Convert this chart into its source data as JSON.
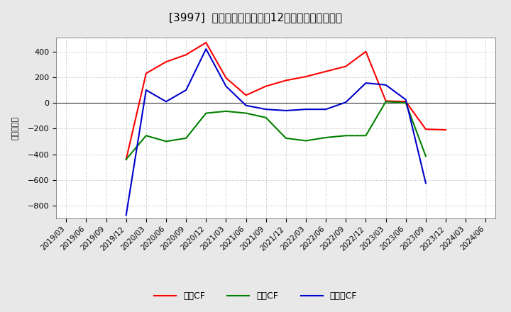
{
  "title": "[3997]  キャッシュフローの12か月移動合計の推移",
  "ylabel": "（百万円）",
  "background_color": "#e8e8e8",
  "plot_background_color": "#ffffff",
  "grid_color": "#aaaaaa",
  "title_fontsize": 11,
  "dates": [
    "2019/03",
    "2019/06",
    "2019/09",
    "2019/12",
    "2020/03",
    "2020/06",
    "2020/09",
    "2020/12",
    "2021/03",
    "2021/06",
    "2021/09",
    "2021/12",
    "2022/03",
    "2022/06",
    "2022/09",
    "2022/12",
    "2023/03",
    "2023/06",
    "2023/09",
    "2023/12",
    "2024/03",
    "2024/06"
  ],
  "operating_cf": [
    null,
    null,
    null,
    -440,
    230,
    320,
    375,
    470,
    195,
    60,
    130,
    175,
    205,
    245,
    285,
    400,
    15,
    10,
    -205,
    -210,
    null,
    null
  ],
  "investing_cf": [
    null,
    null,
    null,
    -440,
    -255,
    -300,
    -275,
    -80,
    -65,
    -80,
    -115,
    -275,
    -295,
    -270,
    -255,
    -255,
    10,
    0,
    -415,
    null,
    null,
    null
  ],
  "free_cf": [
    null,
    null,
    null,
    -875,
    100,
    10,
    100,
    420,
    130,
    -20,
    -50,
    -60,
    -50,
    -50,
    5,
    155,
    140,
    25,
    -625,
    null,
    null,
    null
  ],
  "ylim": [
    -900,
    510
  ],
  "yticks": [
    -800,
    -600,
    -400,
    -200,
    0,
    200,
    400
  ],
  "operating_color": "#ff0000",
  "investing_color": "#008000",
  "free_color": "#0000cc",
  "line_width": 1.5,
  "legend_labels": [
    "営業CF",
    "投資CF",
    "フリーCF"
  ]
}
